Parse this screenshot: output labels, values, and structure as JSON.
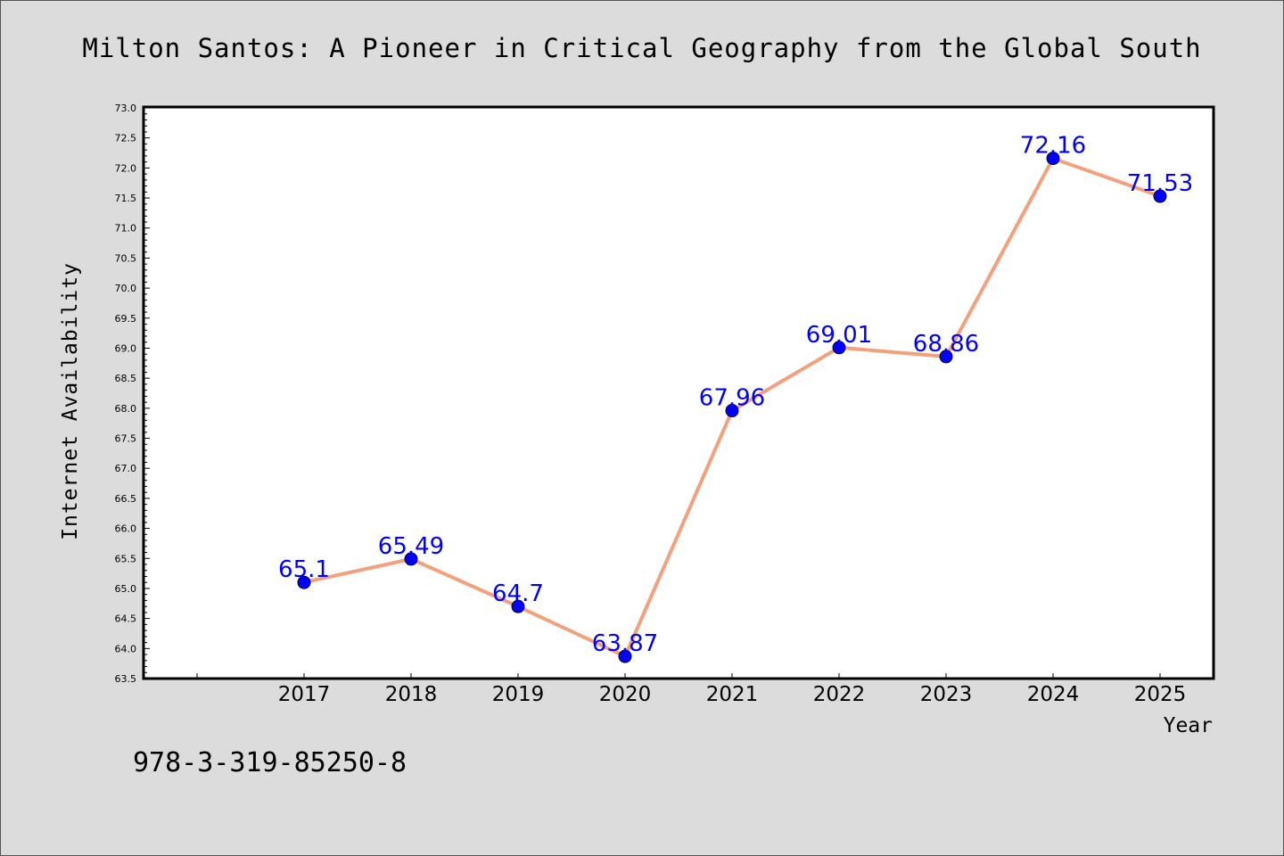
{
  "chart_data": {
    "type": "line",
    "title": "Milton Santos: A Pioneer in Critical Geography from the Global South",
    "xlabel": "Year",
    "ylabel": "Internet Availability",
    "categories": [
      "2017",
      "2018",
      "2019",
      "2020",
      "2021",
      "2022",
      "2023",
      "2024",
      "2025"
    ],
    "series": [
      {
        "values": [
          65.1,
          65.49,
          64.7,
          63.87,
          67.96,
          69.01,
          68.86,
          72.16,
          71.53
        ],
        "labels": [
          "65.1",
          "65.49",
          "64.7",
          "63.87",
          "67.96",
          "69.01",
          "68.86",
          "72.16",
          "71.53"
        ]
      }
    ],
    "ylim": [
      63.5,
      73.0
    ],
    "yticks": [
      "63.5",
      "64.0",
      "64.5",
      "65.0",
      "65.5",
      "66.0",
      "66.5",
      "67.0",
      "67.5",
      "68.0",
      "68.5",
      "69.0",
      "69.5",
      "70.0",
      "70.5",
      "71.0",
      "71.5",
      "72.0",
      "72.5",
      "73.0"
    ],
    "grid": false,
    "legend": "none",
    "colors": {
      "line": "#f4a07c",
      "marker": "#0000ff",
      "label": "#0000ff",
      "figure_bg": "#dcdcdc",
      "plot_bg": "#ffffff"
    }
  },
  "footnote": "978-3-319-85250-8"
}
